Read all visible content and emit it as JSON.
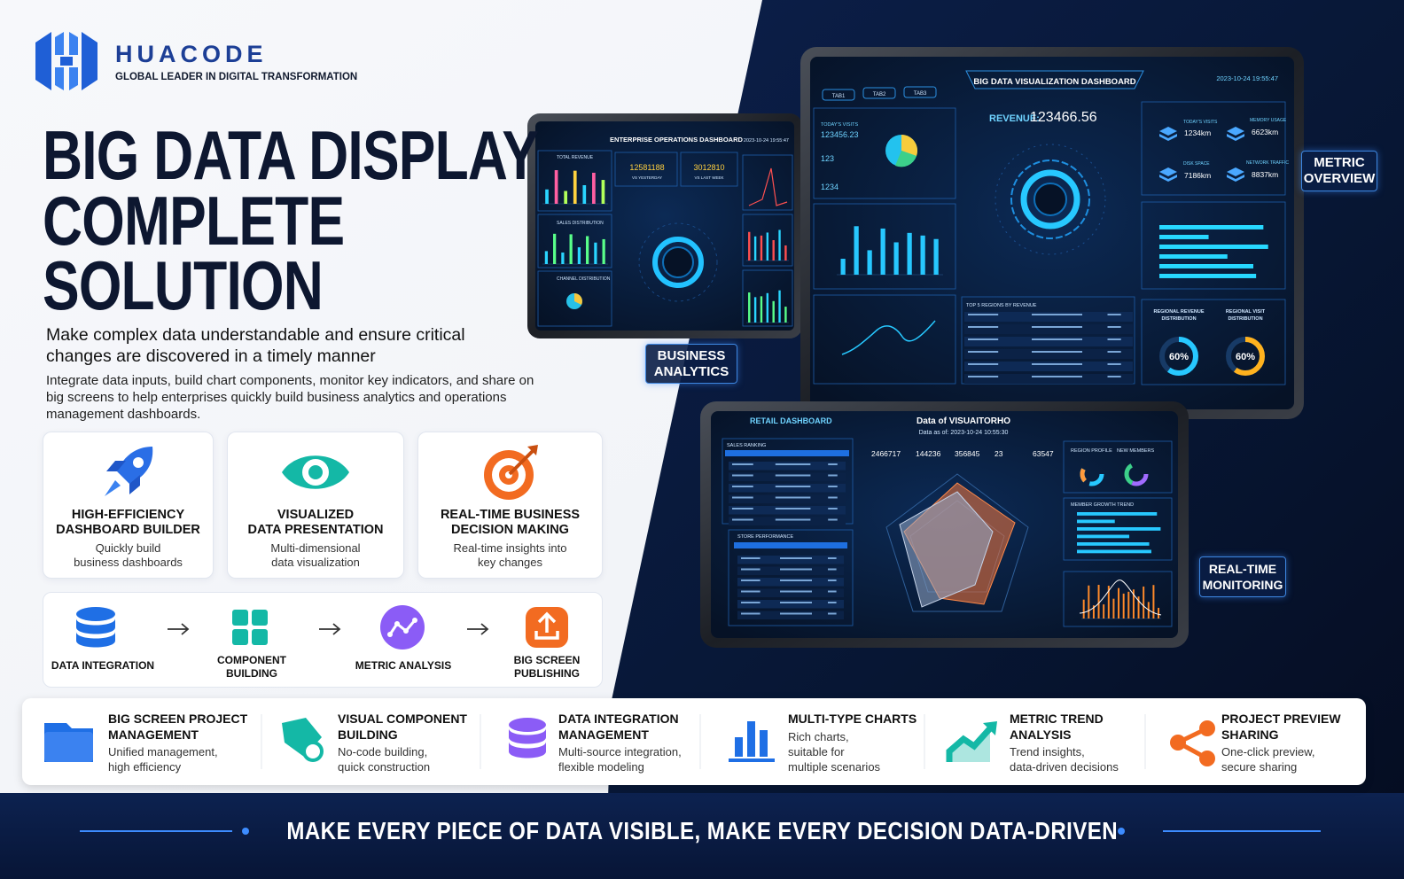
{
  "brand": {
    "name": "HUACODE",
    "tagline": "GLOBAL LEADER IN DIGITAL TRANSFORMATION"
  },
  "hero": {
    "title": [
      "BIG DATA DISPLAY",
      "COMPLETE",
      "SOLUTION"
    ],
    "subtitle": "Make complex data understandable and ensure critical changes are discovered in a timely manner",
    "description": "Integrate data inputs, build chart components, monitor key indicators, and share on big screens to help enterprises quickly build business analytics and operations management dashboards."
  },
  "features": [
    {
      "title": [
        "HIGH-EFFICIENCY",
        "DASHBOARD BUILDER"
      ],
      "description": [
        "Quickly build",
        "business dashboards"
      ]
    },
    {
      "title": [
        "VISUALIZED",
        "DATA PRESENTATION"
      ],
      "description": [
        "Multi-dimensional",
        "data visualization"
      ]
    },
    {
      "title": [
        "REAL-TIME BUSINESS",
        "DECISION MAKING"
      ],
      "description": [
        "Real-time insights into",
        "key changes"
      ]
    }
  ],
  "workflow": [
    [
      "DATA INTEGRATION"
    ],
    [
      "COMPONENT",
      "BUILDING"
    ],
    [
      "METRIC ANALYSIS"
    ],
    [
      "BIG SCREEN",
      "PUBLISHING"
    ]
  ],
  "capabilities": [
    {
      "title": [
        "BIG SCREEN PROJECT",
        "MANAGEMENT"
      ],
      "description": [
        "Unified management,",
        "high efficiency"
      ]
    },
    {
      "title": [
        "VISUAL COMPONENT",
        "BUILDING"
      ],
      "description": [
        "No-code building,",
        "quick construction"
      ]
    },
    {
      "title": [
        "DATA INTEGRATION",
        "MANAGEMENT"
      ],
      "description": [
        "Multi-source integration,",
        "flexible modeling"
      ]
    },
    {
      "title": [
        "MULTI-TYPE CHARTS"
      ],
      "description": [
        "Rich charts,",
        "suitable for",
        "multiple scenarios"
      ]
    },
    {
      "title": [
        "METRIC TREND",
        "ANALYSIS"
      ],
      "description": [
        "Trend insights,",
        "data-driven decisions"
      ]
    },
    {
      "title": [
        "PROJECT PREVIEW",
        "SHARING"
      ],
      "description": [
        "One-click preview,",
        "secure sharing"
      ]
    }
  ],
  "badges": [
    [
      "BUSINESS",
      "ANALYTICS"
    ],
    [
      "METRIC",
      "OVERVIEW"
    ],
    [
      "REAL-TIME",
      "MONITORING"
    ]
  ],
  "dashboards": {
    "enterprise": {
      "title": "ENTERPRISE OPERATIONS DASHBOARD",
      "timestamp": "2023-10-24 19:55:47",
      "panels": [
        "TOTAL REVENUE",
        "SALES DISTRIBUTION",
        "CHANNEL DISTRIBUTION"
      ],
      "kpis": [
        {
          "value": 12581188,
          "label": "VS YESTERDAY"
        },
        {
          "value": 3012810,
          "label": "VS LAST WEEK"
        }
      ]
    },
    "overview": {
      "title": "BIG DATA VISUALIZATION DASHBOARD",
      "timestamp": "2023-10-24 19:55:47",
      "tabs": [
        "TAB1",
        "TAB2",
        "TAB3"
      ],
      "revenue_label": "REVENUE:",
      "revenue": 123466.56,
      "visits": {
        "label": "TODAY'S VISITS",
        "values": [
          123456.23,
          123,
          1234
        ]
      },
      "metrics": [
        {
          "label": "TODAY'S VISITS",
          "value": "1234km"
        },
        {
          "label": "MEMORY USAGE",
          "value": "6623km"
        },
        {
          "label": "DISK SPACE",
          "value": "7186km"
        },
        {
          "label": "NETWORK TRAFFIC",
          "value": "8837km"
        }
      ],
      "table_title": "TOP 5 REGIONS BY REVENUE",
      "gauges": [
        {
          "title": [
            "REGIONAL REVENUE",
            "DISTRIBUTION"
          ],
          "value": 60,
          "label": "60%"
        },
        {
          "title": [
            "REGIONAL VISIT",
            "DISTRIBUTION"
          ],
          "value": 60,
          "label": "60%"
        }
      ]
    },
    "retail": {
      "title": "RETAIL DASHBOARD",
      "heading": "Data of VISUAITORHO",
      "timestamp": "Data as of: 2023-10-24 10:55:30",
      "stats": [
        2466717,
        144236,
        356845,
        23,
        63547
      ],
      "panels": [
        "SALES RANKING",
        "STORE PERFORMANCE",
        "REGION PROFILE",
        "NEW MEMBERS",
        "MEMBER GROWTH TREND"
      ]
    }
  },
  "slogan": "MAKE EVERY PIECE OF DATA VISIBLE, MAKE EVERY DECISION DATA-DRIVEN"
}
